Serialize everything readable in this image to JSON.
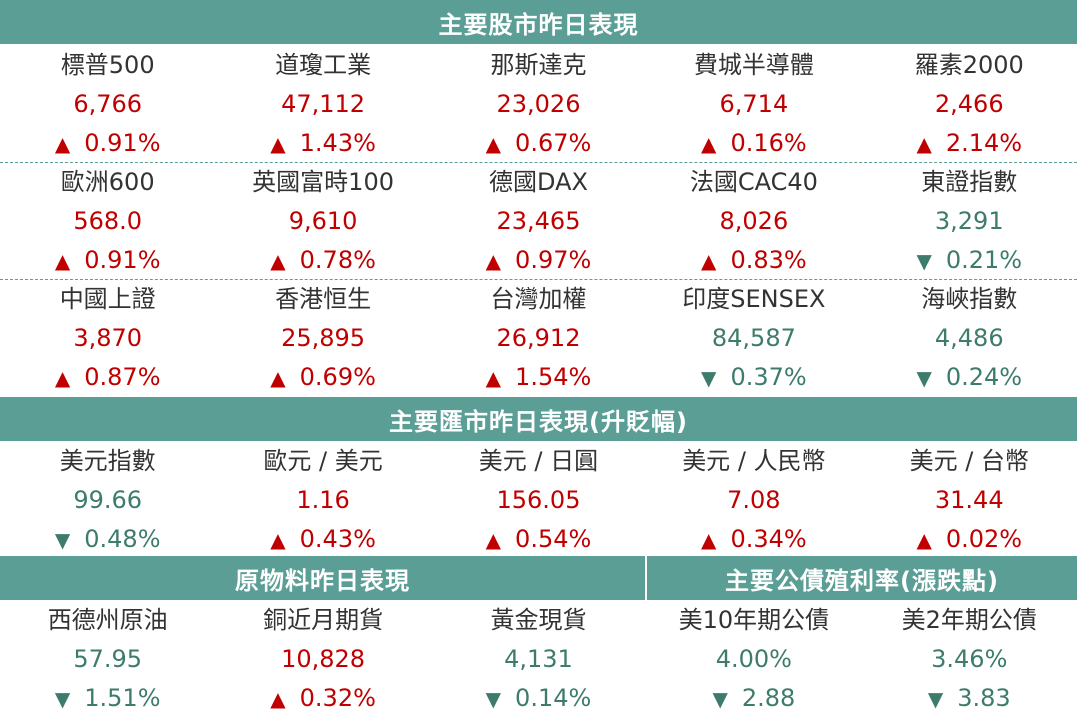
{
  "headers": {
    "stocks": "主要股市昨日表現",
    "fx": "主要匯市昨日表現(升貶幅)",
    "commodities": "原物料昨日表現",
    "bonds": "主要公債殖利率(漲跌點)"
  },
  "stocks": [
    [
      {
        "name": "標普500",
        "value": "6,766",
        "change": "0.91%",
        "dir": "up"
      },
      {
        "name": "道瓊工業",
        "value": "47,112",
        "change": "1.43%",
        "dir": "up"
      },
      {
        "name": "那斯達克",
        "value": "23,026",
        "change": "0.67%",
        "dir": "up"
      },
      {
        "name": "費城半導體",
        "value": "6,714",
        "change": "0.16%",
        "dir": "up"
      },
      {
        "name": "羅素2000",
        "value": "2,466",
        "change": "2.14%",
        "dir": "up"
      }
    ],
    [
      {
        "name": "歐洲600",
        "value": "568.0",
        "change": "0.91%",
        "dir": "up"
      },
      {
        "name": "英國富時100",
        "value": "9,610",
        "change": "0.78%",
        "dir": "up"
      },
      {
        "name": "德國DAX",
        "value": "23,465",
        "change": "0.97%",
        "dir": "up"
      },
      {
        "name": "法國CAC40",
        "value": "8,026",
        "change": "0.83%",
        "dir": "up"
      },
      {
        "name": "東證指數",
        "value": "3,291",
        "change": "0.21%",
        "dir": "down"
      }
    ],
    [
      {
        "name": "中國上證",
        "value": "3,870",
        "change": "0.87%",
        "dir": "up"
      },
      {
        "name": "香港恒生",
        "value": "25,895",
        "change": "0.69%",
        "dir": "up"
      },
      {
        "name": "台灣加權",
        "value": "26,912",
        "change": "1.54%",
        "dir": "up"
      },
      {
        "name": "印度SENSEX",
        "value": "84,587",
        "change": "0.37%",
        "dir": "down"
      },
      {
        "name": "海峽指數",
        "value": "4,486",
        "change": "0.24%",
        "dir": "down"
      }
    ]
  ],
  "fx": [
    {
      "name": "美元指數",
      "value": "99.66",
      "change": "0.48%",
      "dir": "down"
    },
    {
      "name": "歐元 / 美元",
      "value": "1.16",
      "change": "0.43%",
      "dir": "up"
    },
    {
      "name": "美元 / 日圓",
      "value": "156.05",
      "change": "0.54%",
      "dir": "up"
    },
    {
      "name": "美元 / 人民幣",
      "value": "7.08",
      "change": "0.34%",
      "dir": "up"
    },
    {
      "name": "美元 / 台幣",
      "value": "31.44",
      "change": "0.02%",
      "dir": "up"
    }
  ],
  "last": [
    {
      "name": "西德州原油",
      "value": "57.95",
      "change": "1.51%",
      "dir": "down"
    },
    {
      "name": "銅近月期貨",
      "value": "10,828",
      "change": "0.32%",
      "dir": "up"
    },
    {
      "name": "黃金現貨",
      "value": "4,131",
      "change": "0.14%",
      "dir": "down"
    },
    {
      "name": "美10年期公債",
      "value": "4.00%",
      "change": "2.88",
      "dir": "down"
    },
    {
      "name": "美2年期公債",
      "value": "3.46%",
      "change": "3.83",
      "dir": "down"
    }
  ],
  "colors": {
    "header": "#5a9e95",
    "up": "#c00000",
    "down": "#3d7b6c"
  },
  "icons": {
    "up": "up-triangle-icon",
    "down": "down-triangle-icon"
  }
}
